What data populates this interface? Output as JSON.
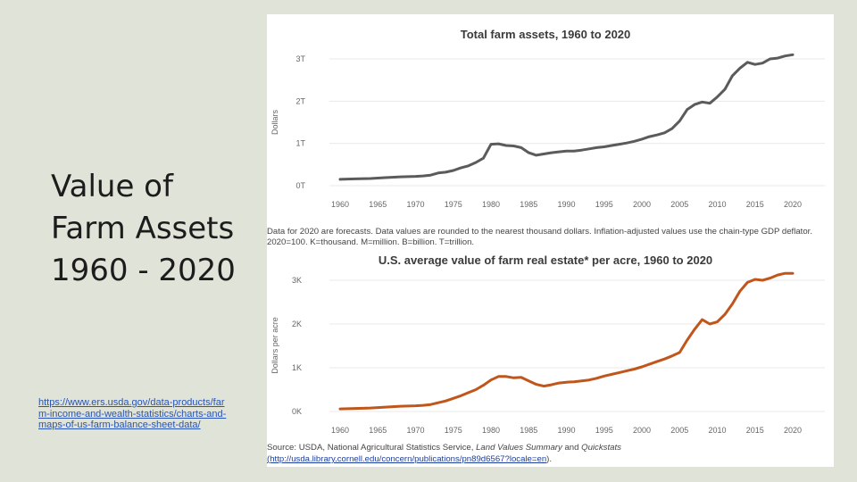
{
  "slide": {
    "title_lines": [
      "Value of",
      "Farm Assets",
      "1960 - 2020"
    ],
    "link_text": "https://www.ers.usda.gov/data-products/farm-income-and-wealth-statistics/charts-and-maps-of-us-farm-balance-sheet-data/"
  },
  "note": "Data for 2020 are forecasts. Data values are rounded to the nearest thousand dollars. Inflation-adjusted values use the chain-type GDP deflator. 2020=100. K=thousand. M=million. B=billion. T=trillion.",
  "source": {
    "prefix": "Source: USDA, National Agricultural Statistics Service, ",
    "em1": "Land Values Summary",
    "mid": " and ",
    "em2": "Quickstats",
    "link": "(http://usda.library.cornell.edu/concern/publications/pn89d6567?locale=en",
    "suffix": ")."
  },
  "chart_data": [
    {
      "type": "line",
      "title": "Total farm assets, 1960 to 2020",
      "xlabel": "",
      "ylabel": "Dollars",
      "xlim": [
        1960,
        2020
      ],
      "ylim": [
        0,
        3
      ],
      "x_ticks": [
        1960,
        1965,
        1970,
        1975,
        1980,
        1985,
        1990,
        1995,
        2000,
        2005,
        2010,
        2015,
        2020
      ],
      "y_ticks": [
        0,
        1,
        2,
        3
      ],
      "y_tick_labels": [
        "0T",
        "1T",
        "2T",
        "3T"
      ],
      "grid": true,
      "color": "#5b5b5b",
      "series": [
        {
          "x": [
            1960,
            1962,
            1964,
            1966,
            1968,
            1970,
            1971,
            1972,
            1973,
            1974,
            1975,
            1976,
            1977,
            1978,
            1979,
            1980,
            1981,
            1982,
            1983,
            1984,
            1985,
            1986,
            1987,
            1988,
            1989,
            1990,
            1991,
            1992,
            1993,
            1994,
            1995,
            1996,
            1997,
            1998,
            1999,
            2000,
            2001,
            2002,
            2003,
            2004,
            2005,
            2006,
            2007,
            2008,
            2009,
            2010,
            2011,
            2012,
            2013,
            2014,
            2015,
            2016,
            2017,
            2018,
            2019,
            2020
          ],
          "values": [
            0.15,
            0.16,
            0.17,
            0.19,
            0.21,
            0.22,
            0.23,
            0.25,
            0.3,
            0.32,
            0.36,
            0.42,
            0.47,
            0.55,
            0.65,
            0.98,
            0.99,
            0.95,
            0.94,
            0.9,
            0.78,
            0.72,
            0.75,
            0.78,
            0.8,
            0.82,
            0.82,
            0.84,
            0.87,
            0.9,
            0.92,
            0.95,
            0.98,
            1.01,
            1.05,
            1.1,
            1.16,
            1.2,
            1.25,
            1.35,
            1.53,
            1.8,
            1.92,
            1.98,
            1.95,
            2.1,
            2.28,
            2.6,
            2.78,
            2.92,
            2.87,
            2.9,
            3.0,
            3.02,
            3.07,
            3.1
          ]
        }
      ]
    },
    {
      "type": "line",
      "title": "U.S. average value of farm real estate* per acre, 1960 to 2020",
      "xlabel": "",
      "ylabel": "Dollars per acre",
      "xlim": [
        1960,
        2020
      ],
      "ylim": [
        0,
        3
      ],
      "x_ticks": [
        1960,
        1965,
        1970,
        1975,
        1980,
        1985,
        1990,
        1995,
        2000,
        2005,
        2010,
        2015,
        2020
      ],
      "y_ticks": [
        0,
        1,
        2,
        3
      ],
      "y_tick_labels": [
        "0K",
        "1K",
        "2K",
        "3K"
      ],
      "grid": true,
      "color": "#c0561b",
      "series": [
        {
          "x": [
            1960,
            1962,
            1964,
            1966,
            1968,
            1970,
            1971,
            1972,
            1973,
            1974,
            1975,
            1976,
            1977,
            1978,
            1979,
            1980,
            1981,
            1982,
            1983,
            1984,
            1985,
            1986,
            1987,
            1988,
            1989,
            1990,
            1991,
            1992,
            1993,
            1994,
            1995,
            1996,
            1997,
            1998,
            1999,
            2000,
            2001,
            2002,
            2003,
            2004,
            2005,
            2006,
            2007,
            2008,
            2009,
            2010,
            2011,
            2012,
            2013,
            2014,
            2015,
            2016,
            2017,
            2018,
            2019,
            2020
          ],
          "values": [
            0.06,
            0.07,
            0.08,
            0.1,
            0.12,
            0.13,
            0.14,
            0.16,
            0.2,
            0.24,
            0.3,
            0.36,
            0.43,
            0.5,
            0.6,
            0.72,
            0.8,
            0.8,
            0.77,
            0.78,
            0.7,
            0.62,
            0.58,
            0.61,
            0.65,
            0.67,
            0.68,
            0.7,
            0.72,
            0.76,
            0.81,
            0.85,
            0.89,
            0.93,
            0.97,
            1.02,
            1.08,
            1.14,
            1.2,
            1.27,
            1.35,
            1.63,
            1.88,
            2.1,
            2.0,
            2.05,
            2.22,
            2.46,
            2.75,
            2.95,
            3.02,
            3.0,
            3.05,
            3.12,
            3.16,
            3.16
          ]
        }
      ]
    }
  ]
}
